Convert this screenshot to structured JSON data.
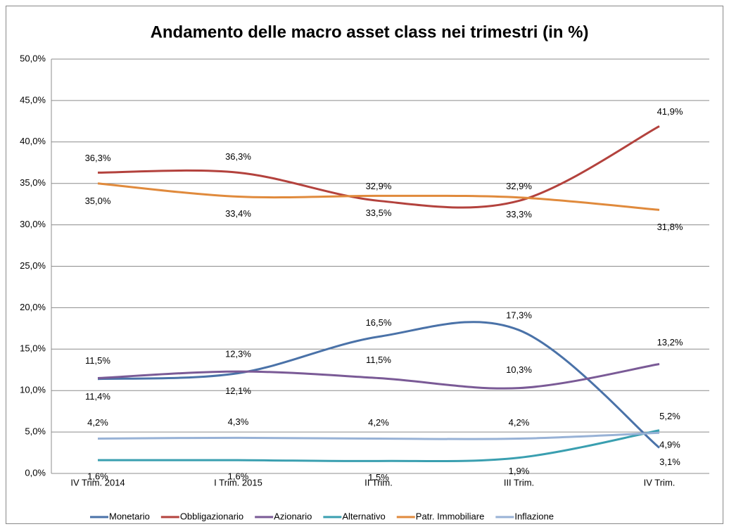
{
  "chart_data": {
    "type": "line",
    "title": "Andamento delle macro asset class nei trimestri (in %)",
    "categories": [
      "IV Trim. 2014",
      "I Trim. 2015",
      "II Trim.",
      "III Trim.",
      "IV Trim."
    ],
    "ylim": [
      0,
      50
    ],
    "yticks": [
      {
        "value": 0,
        "label": "0,0%"
      },
      {
        "value": 5,
        "label": "5,0%"
      },
      {
        "value": 10,
        "label": "10,0%"
      },
      {
        "value": 15,
        "label": "15,0%"
      },
      {
        "value": 20,
        "label": "20,0%"
      },
      {
        "value": 25,
        "label": "25,0%"
      },
      {
        "value": 30,
        "label": "30,0%"
      },
      {
        "value": 35,
        "label": "35,0%"
      },
      {
        "value": 40,
        "label": "40,0%"
      },
      {
        "value": 45,
        "label": "45,0%"
      },
      {
        "value": 50,
        "label": "50,0%"
      }
    ],
    "grid": true,
    "legend": "bottom",
    "smooth": true,
    "series": [
      {
        "name": "Monetario",
        "color": "#4a72a8",
        "values": [
          11.4,
          12.1,
          16.5,
          17.3,
          3.1
        ],
        "value_labels": [
          "11,4%",
          "12,1%",
          "16,5%",
          "17,3%",
          "3,1%"
        ]
      },
      {
        "name": "Obbligazionario",
        "color": "#b3423d",
        "values": [
          36.3,
          36.3,
          32.9,
          32.9,
          41.9
        ],
        "value_labels": [
          "36,3%",
          "36,3%",
          "32,9%",
          "32,9%",
          "41,9%"
        ]
      },
      {
        "name": "Azionario",
        "color": "#7a5a96",
        "values": [
          11.5,
          12.3,
          11.5,
          10.3,
          13.2
        ],
        "value_labels": [
          "11,5%",
          "12,3%",
          "11,5%",
          "10,3%",
          "13,2%"
        ]
      },
      {
        "name": "Alternativo",
        "color": "#3a9fb0",
        "values": [
          1.6,
          1.6,
          1.5,
          1.9,
          5.2
        ],
        "value_labels": [
          "1,6%",
          "1,6%",
          "1,5%",
          "1,9%",
          "5,2%"
        ]
      },
      {
        "name": "Patr. Immobiliare",
        "color": "#e08a3c",
        "values": [
          35.0,
          33.4,
          33.5,
          33.3,
          31.8
        ],
        "value_labels": [
          "35,0%",
          "33,4%",
          "33,5%",
          "33,3%",
          "31,8%"
        ]
      },
      {
        "name": "Inflazione",
        "color": "#98b2d6",
        "values": [
          4.2,
          4.3,
          4.2,
          4.2,
          4.9
        ],
        "value_labels": [
          "4,2%",
          "4,3%",
          "4,2%",
          "4,2%",
          "4,9%"
        ]
      }
    ]
  }
}
